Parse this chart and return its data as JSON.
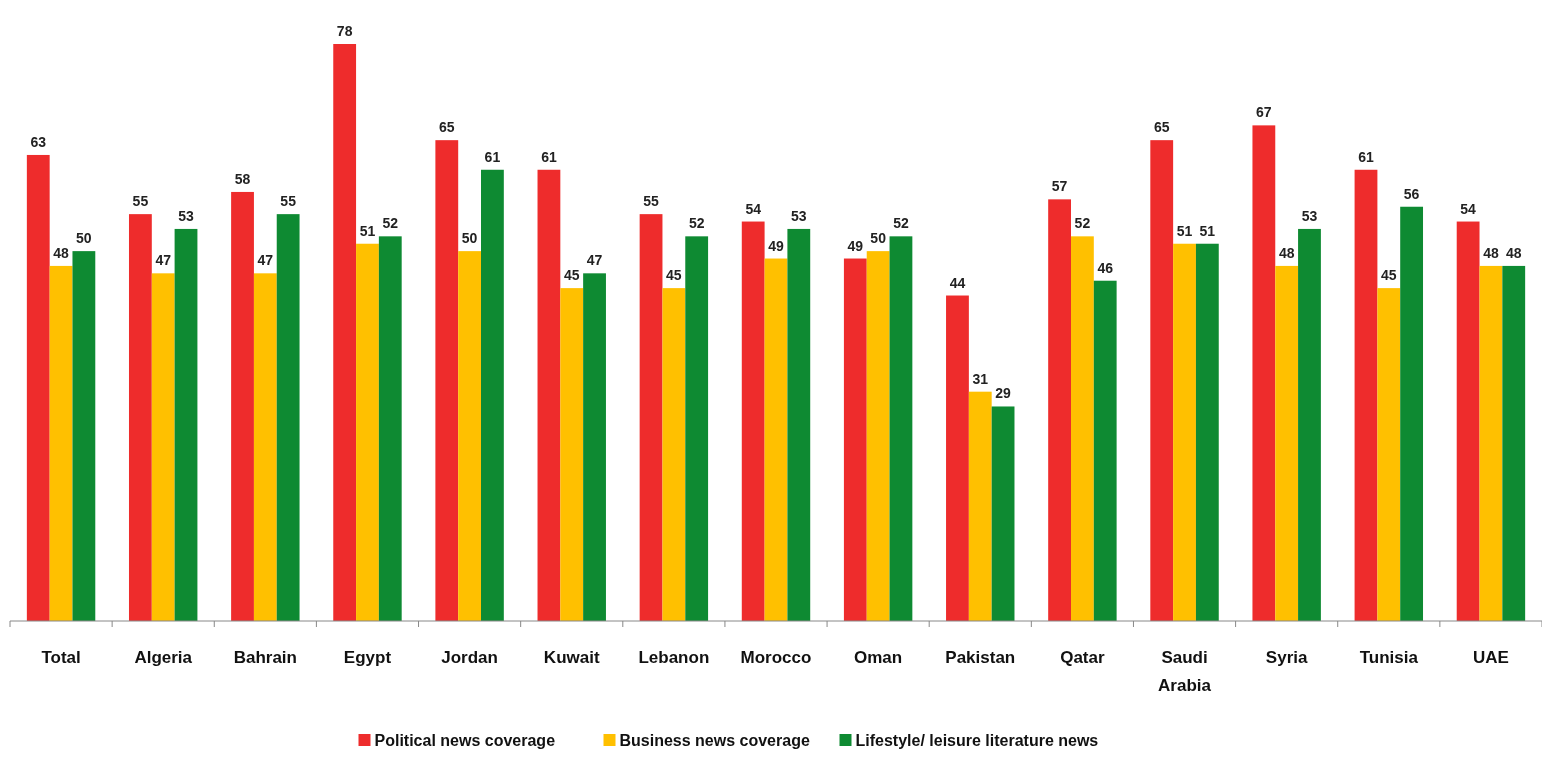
{
  "chart_data": {
    "type": "bar",
    "categories": [
      "Total",
      "Algeria",
      "Bahrain",
      "Egypt",
      "Jordan",
      "Kuwait",
      "Lebanon",
      "Morocco",
      "Oman",
      "Pakistan",
      "Qatar",
      "Saudi Arabia",
      "Syria",
      "Tunisia",
      "UAE"
    ],
    "series": [
      {
        "name": "Political news coverage",
        "color": "#ee2c2c",
        "values": [
          63,
          55,
          58,
          78,
          65,
          61,
          55,
          54,
          49,
          44,
          57,
          65,
          67,
          61,
          54
        ]
      },
      {
        "name": "Business news coverage",
        "color": "#ffc000",
        "values": [
          48,
          47,
          47,
          51,
          50,
          45,
          45,
          49,
          50,
          31,
          52,
          51,
          48,
          45,
          48
        ]
      },
      {
        "name": "Lifestyle/ leisure literature news",
        "color": "#0e8a32",
        "values": [
          50,
          53,
          55,
          52,
          61,
          47,
          52,
          53,
          52,
          29,
          46,
          51,
          53,
          56,
          48
        ]
      }
    ],
    "data_labels": true,
    "legend": "bottom"
  }
}
